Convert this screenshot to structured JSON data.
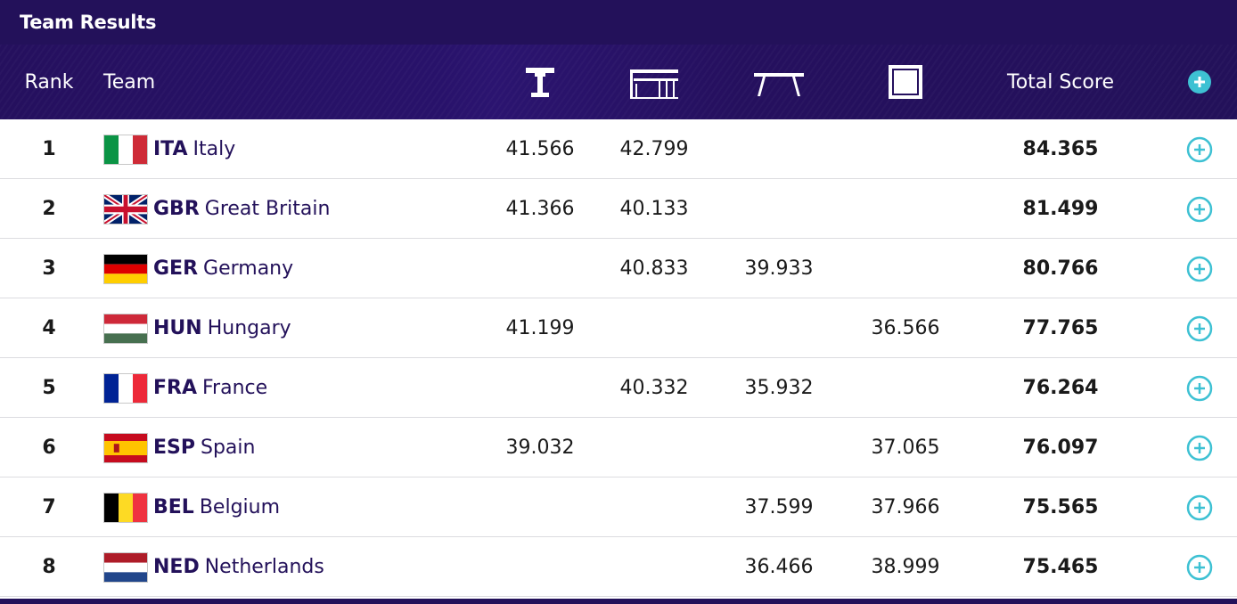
{
  "title": "Team Results",
  "header": {
    "rank": "Rank",
    "team": "Team",
    "events": [
      "pommel-horse-icon",
      "parallel-bars-icon",
      "balance-beam-icon",
      "floor-exercise-icon"
    ],
    "total": "Total Score"
  },
  "colors": {
    "navy": "#23115a",
    "accent": "#3ec1d3"
  },
  "rows": [
    {
      "rank": "1",
      "code": "ITA",
      "name": "Italy",
      "e1": "41.566",
      "e2": "42.799",
      "e3": "",
      "e4": "",
      "total": "84.365",
      "flag": "italy-flag-icon"
    },
    {
      "rank": "2",
      "code": "GBR",
      "name": "Great Britain",
      "e1": "41.366",
      "e2": "40.133",
      "e3": "",
      "e4": "",
      "total": "81.499",
      "flag": "great-britain-flag-icon"
    },
    {
      "rank": "3",
      "code": "GER",
      "name": "Germany",
      "e1": "",
      "e2": "40.833",
      "e3": "39.933",
      "e4": "",
      "total": "80.766",
      "flag": "germany-flag-icon"
    },
    {
      "rank": "4",
      "code": "HUN",
      "name": "Hungary",
      "e1": "41.199",
      "e2": "",
      "e3": "",
      "e4": "36.566",
      "total": "77.765",
      "flag": "hungary-flag-icon"
    },
    {
      "rank": "5",
      "code": "FRA",
      "name": "France",
      "e1": "",
      "e2": "40.332",
      "e3": "35.932",
      "e4": "",
      "total": "76.264",
      "flag": "france-flag-icon"
    },
    {
      "rank": "6",
      "code": "ESP",
      "name": "Spain",
      "e1": "39.032",
      "e2": "",
      "e3": "",
      "e4": "37.065",
      "total": "76.097",
      "flag": "spain-flag-icon"
    },
    {
      "rank": "7",
      "code": "BEL",
      "name": "Belgium",
      "e1": "",
      "e2": "",
      "e3": "37.599",
      "e4": "37.966",
      "total": "75.565",
      "flag": "belgium-flag-icon"
    },
    {
      "rank": "8",
      "code": "NED",
      "name": "Netherlands",
      "e1": "",
      "e2": "",
      "e3": "36.466",
      "e4": "38.999",
      "total": "75.465",
      "flag": "netherlands-flag-icon"
    }
  ]
}
